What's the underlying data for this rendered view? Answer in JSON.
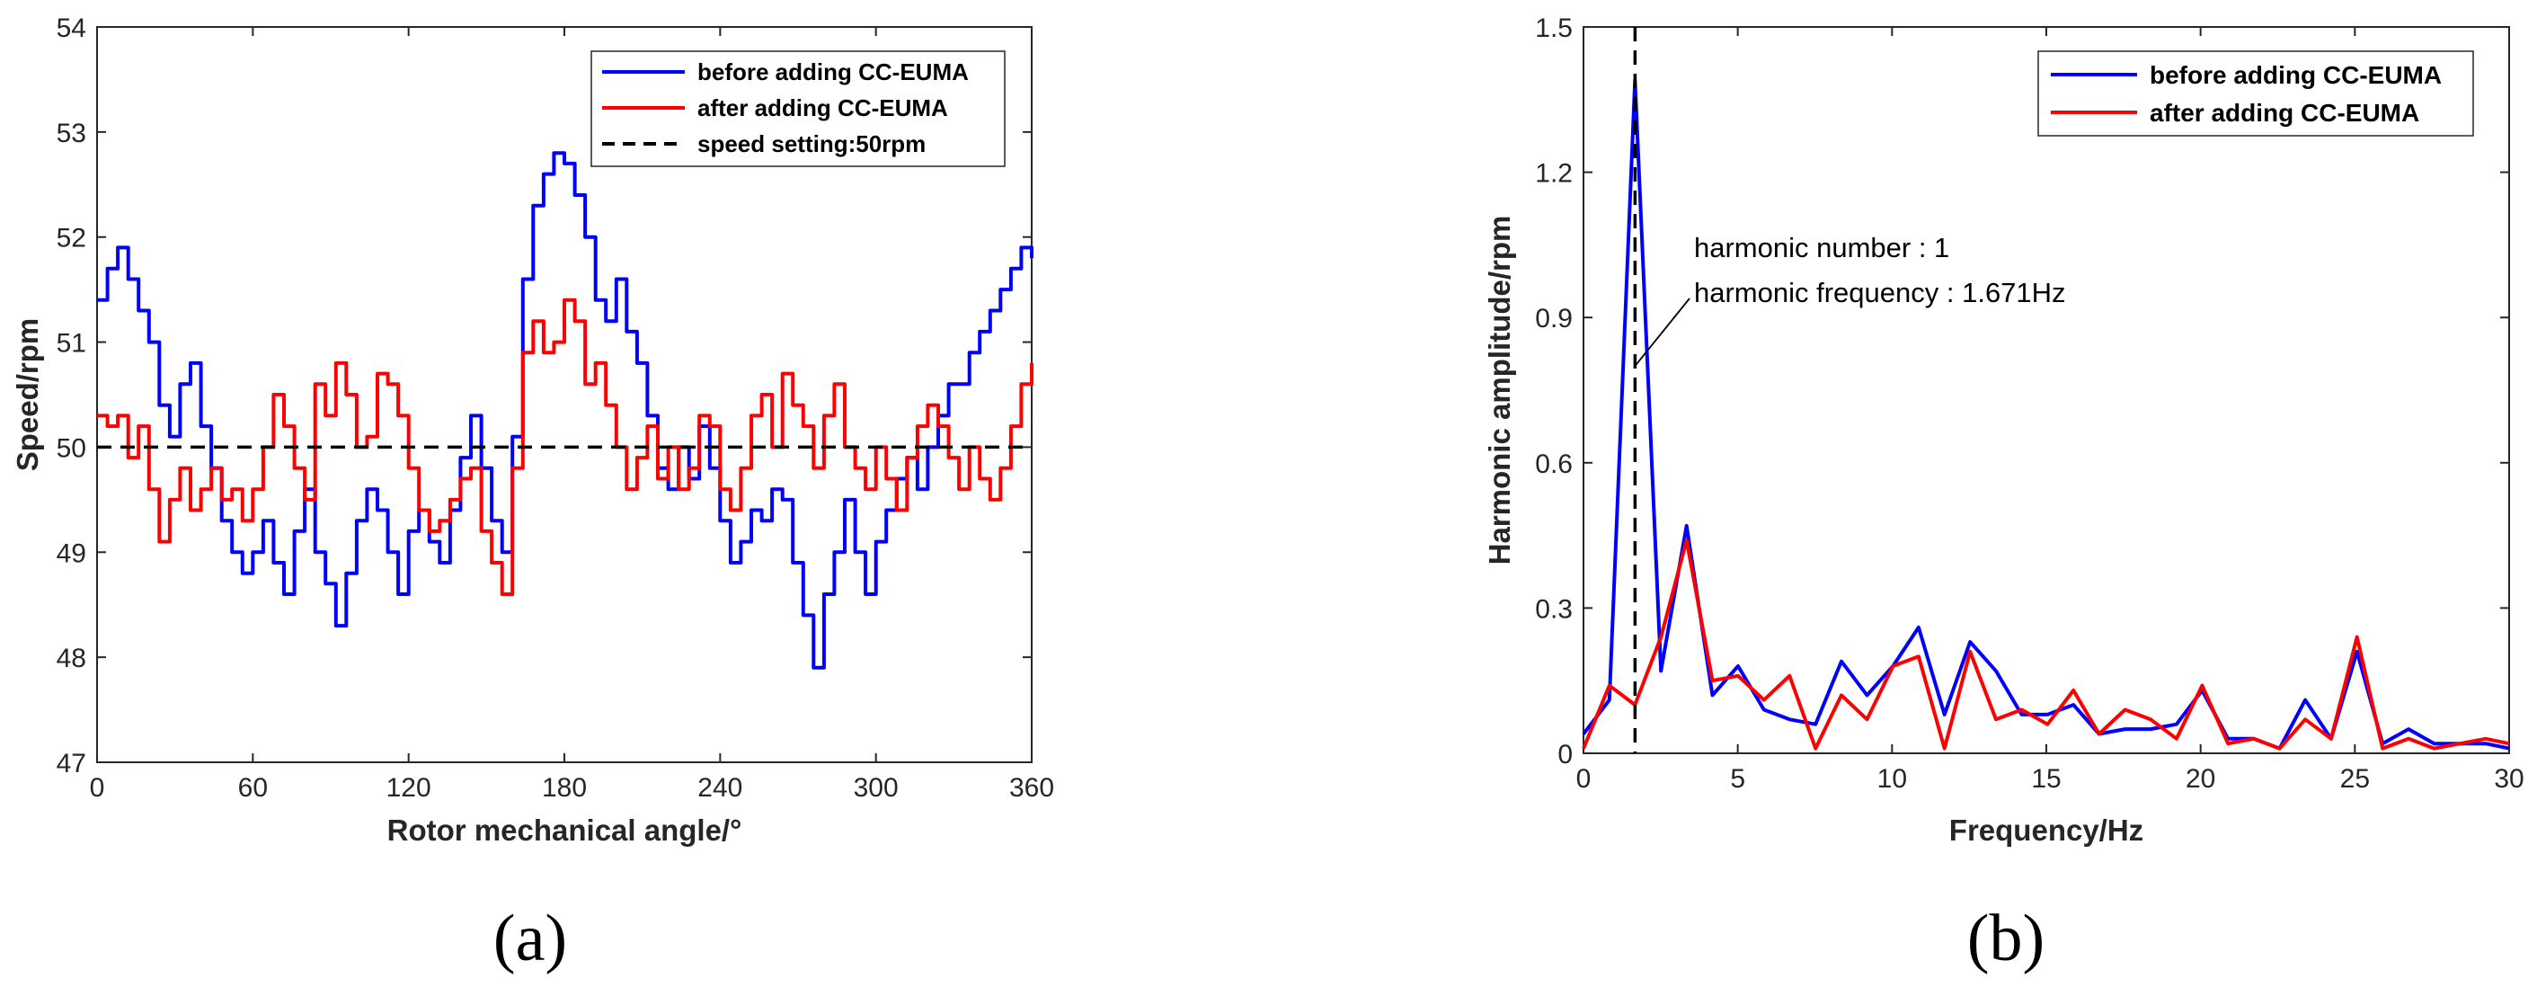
{
  "chart_data": [
    {
      "panel_label": "(a)",
      "type": "line",
      "xlabel": "Rotor mechanical angle/°",
      "ylabel": "Speed/rpm",
      "xlim": [
        0,
        360
      ],
      "ylim": [
        47,
        54
      ],
      "xticks": [
        0,
        60,
        120,
        180,
        240,
        300,
        360
      ],
      "yticks": [
        47,
        48,
        49,
        50,
        51,
        52,
        53,
        54
      ],
      "legend_position": "top-right",
      "series": [
        {
          "name": "before adding CC-EUMA",
          "color": "#0000ff",
          "style": "step",
          "x": [
            0,
            4,
            8,
            12,
            16,
            20,
            24,
            28,
            32,
            36,
            40,
            44,
            48,
            52,
            56,
            60,
            64,
            68,
            72,
            76,
            80,
            84,
            88,
            92,
            96,
            100,
            104,
            108,
            112,
            116,
            120,
            124,
            128,
            132,
            136,
            140,
            144,
            148,
            152,
            156,
            160,
            164,
            168,
            172,
            176,
            180,
            184,
            188,
            192,
            196,
            200,
            204,
            208,
            212,
            216,
            220,
            224,
            228,
            232,
            236,
            240,
            244,
            248,
            252,
            256,
            260,
            264,
            268,
            272,
            276,
            280,
            284,
            288,
            292,
            296,
            300,
            304,
            308,
            312,
            316,
            320,
            324,
            328,
            332,
            336,
            340,
            344,
            348,
            352,
            356,
            360
          ],
          "y": [
            51.4,
            51.7,
            51.9,
            51.6,
            51.3,
            51.0,
            50.4,
            50.1,
            50.6,
            50.8,
            50.2,
            49.8,
            49.3,
            49.0,
            48.8,
            49.0,
            49.3,
            48.9,
            48.6,
            49.2,
            49.6,
            49.0,
            48.7,
            48.3,
            48.8,
            49.3,
            49.6,
            49.4,
            49.0,
            48.6,
            49.2,
            49.4,
            49.1,
            48.9,
            49.4,
            49.9,
            50.3,
            49.8,
            49.3,
            49.0,
            50.1,
            51.6,
            52.3,
            52.6,
            52.8,
            52.7,
            52.4,
            52.0,
            51.4,
            51.2,
            51.6,
            51.1,
            50.8,
            50.3,
            49.8,
            49.6,
            50.0,
            49.7,
            50.2,
            49.8,
            49.3,
            48.9,
            49.1,
            49.4,
            49.3,
            49.6,
            49.5,
            48.9,
            48.4,
            47.9,
            48.6,
            49.0,
            49.5,
            49.0,
            48.6,
            49.1,
            49.4,
            49.7,
            49.9,
            49.6,
            50.0,
            50.3,
            50.6,
            50.6,
            50.9,
            51.1,
            51.3,
            51.5,
            51.7,
            51.9,
            51.8
          ]
        },
        {
          "name": "after adding CC-EUMA",
          "color": "#ff0000",
          "style": "step",
          "x": [
            0,
            4,
            8,
            12,
            16,
            20,
            24,
            28,
            32,
            36,
            40,
            44,
            48,
            52,
            56,
            60,
            64,
            68,
            72,
            76,
            80,
            84,
            88,
            92,
            96,
            100,
            104,
            108,
            112,
            116,
            120,
            124,
            128,
            132,
            136,
            140,
            144,
            148,
            152,
            156,
            160,
            164,
            168,
            172,
            176,
            180,
            184,
            188,
            192,
            196,
            200,
            204,
            208,
            212,
            216,
            220,
            224,
            228,
            232,
            236,
            240,
            244,
            248,
            252,
            256,
            260,
            264,
            268,
            272,
            276,
            280,
            284,
            288,
            292,
            296,
            300,
            304,
            308,
            312,
            316,
            320,
            324,
            328,
            332,
            336,
            340,
            344,
            348,
            352,
            356,
            360
          ],
          "y": [
            50.3,
            50.2,
            50.3,
            49.9,
            50.2,
            49.6,
            49.1,
            49.5,
            49.8,
            49.4,
            49.6,
            49.8,
            49.5,
            49.6,
            49.3,
            49.6,
            50.0,
            50.5,
            50.2,
            49.8,
            49.5,
            50.6,
            50.3,
            50.8,
            50.5,
            50.0,
            50.1,
            50.7,
            50.6,
            50.3,
            49.8,
            49.4,
            49.2,
            49.3,
            49.5,
            49.7,
            49.8,
            49.2,
            48.9,
            48.6,
            49.8,
            50.9,
            51.2,
            50.9,
            51.0,
            51.4,
            51.2,
            50.6,
            50.8,
            50.4,
            50.0,
            49.6,
            49.9,
            50.2,
            49.7,
            50.0,
            49.6,
            49.8,
            50.3,
            50.2,
            49.6,
            49.4,
            49.8,
            50.3,
            50.5,
            50.0,
            50.7,
            50.4,
            50.2,
            49.8,
            50.3,
            50.6,
            50.0,
            49.8,
            49.6,
            50.0,
            49.7,
            49.4,
            49.9,
            50.2,
            50.4,
            50.2,
            49.9,
            49.6,
            50.0,
            49.7,
            49.5,
            49.8,
            50.2,
            50.6,
            50.8
          ]
        },
        {
          "name": "speed setting:50rpm",
          "color": "#000000",
          "style": "dashed",
          "x": [
            0,
            360
          ],
          "y": [
            50,
            50
          ]
        }
      ]
    },
    {
      "panel_label": "(b)",
      "type": "line",
      "xlabel": "Frequency/Hz",
      "ylabel": "Harmonic amplitude/rpm",
      "xlim": [
        0,
        30
      ],
      "ylim": [
        0,
        1.5
      ],
      "xticks": [
        0,
        5,
        10,
        15,
        20,
        25,
        30
      ],
      "yticks": [
        0,
        0.3,
        0.6,
        0.9,
        1.2,
        1.5
      ],
      "ytick_labels": [
        "0",
        "0.3",
        "0.6",
        "0.9",
        "1.2",
        "1.5"
      ],
      "legend_position": "top-right",
      "marker_line": {
        "x": 1.671,
        "style": "dashed",
        "color": "#000000"
      },
      "annotation": {
        "lines": [
          "harmonic number : 1",
          "harmonic frequency : 1.671Hz"
        ],
        "points_to": [
          1.671,
          0.8
        ]
      },
      "series": [
        {
          "name": "before adding CC-EUMA",
          "color": "#0000ff",
          "x": [
            0,
            0.84,
            1.67,
            2.51,
            3.34,
            4.18,
            5.01,
            5.85,
            6.68,
            7.52,
            8.36,
            9.19,
            10.03,
            10.86,
            11.7,
            12.53,
            13.37,
            14.2,
            15.04,
            15.88,
            16.71,
            17.55,
            18.38,
            19.22,
            20.05,
            20.89,
            21.72,
            22.56,
            23.39,
            24.23,
            25.07,
            25.9,
            26.74,
            27.57,
            28.41,
            29.24,
            30.0
          ],
          "y": [
            0.04,
            0.11,
            1.39,
            0.17,
            0.47,
            0.12,
            0.18,
            0.09,
            0.07,
            0.06,
            0.19,
            0.12,
            0.18,
            0.26,
            0.08,
            0.23,
            0.17,
            0.08,
            0.08,
            0.1,
            0.04,
            0.05,
            0.05,
            0.06,
            0.13,
            0.03,
            0.03,
            0.01,
            0.11,
            0.03,
            0.21,
            0.02,
            0.05,
            0.02,
            0.02,
            0.02,
            0.01
          ]
        },
        {
          "name": "after adding CC-EUMA",
          "color": "#ff0000",
          "x": [
            0,
            0.84,
            1.67,
            2.51,
            3.34,
            4.18,
            5.01,
            5.85,
            6.68,
            7.52,
            8.36,
            9.19,
            10.03,
            10.86,
            11.7,
            12.53,
            13.37,
            14.2,
            15.04,
            15.88,
            16.71,
            17.55,
            18.38,
            19.22,
            20.05,
            20.89,
            21.72,
            22.56,
            23.39,
            24.23,
            25.07,
            25.9,
            26.74,
            27.57,
            28.41,
            29.24,
            30.0
          ],
          "y": [
            0.01,
            0.14,
            0.1,
            0.24,
            0.44,
            0.15,
            0.16,
            0.11,
            0.16,
            0.01,
            0.12,
            0.07,
            0.18,
            0.2,
            0.01,
            0.21,
            0.07,
            0.09,
            0.06,
            0.13,
            0.04,
            0.09,
            0.07,
            0.03,
            0.14,
            0.02,
            0.03,
            0.01,
            0.07,
            0.03,
            0.24,
            0.01,
            0.03,
            0.01,
            0.02,
            0.03,
            0.02
          ]
        }
      ]
    }
  ]
}
